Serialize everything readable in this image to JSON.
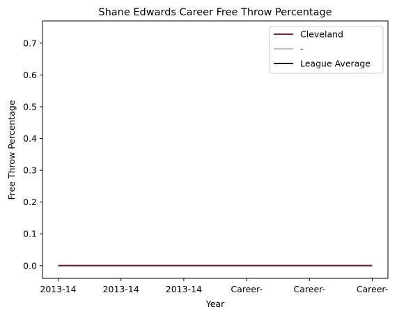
{
  "chart_data": {
    "type": "line",
    "title": "Shane Edwards  Career Free Throw Percentage",
    "xlabel": "Year",
    "ylabel": "Free Throw Percentage",
    "categories": [
      "2013-14",
      "2013-14",
      "2013-14",
      "Career-",
      "Career-",
      "Career-"
    ],
    "ylim": [
      -0.04,
      0.77
    ],
    "yticks": [
      "0.0",
      "0.1",
      "0.2",
      "0.3",
      "0.4",
      "0.5",
      "0.6",
      "0.7"
    ],
    "series": [
      {
        "name": "Cleveland",
        "values": [
          0,
          0,
          0,
          0,
          0,
          0
        ],
        "color": "#6f263d"
      },
      {
        "name": "-",
        "values": [
          0,
          0,
          0,
          0,
          0,
          0
        ],
        "color": "#c0c0c0"
      },
      {
        "name": "League Average",
        "values": [
          0,
          0,
          0,
          0,
          0,
          0
        ],
        "color": "#000000"
      }
    ],
    "legend_position": "top-right",
    "grid": false
  }
}
